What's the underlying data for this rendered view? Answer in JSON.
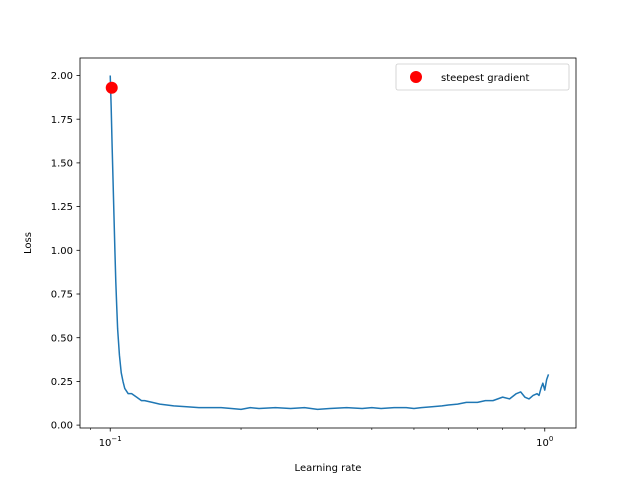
{
  "chart_data": {
    "type": "line",
    "xlabel": "Learning rate",
    "ylabel": "Loss",
    "xscale": "log",
    "xlim": [
      0.0852,
      1.18
    ],
    "ylim": [
      -0.0165,
      2.1
    ],
    "grid": false,
    "legend_position": "top-right",
    "x_tick_labels": [
      {
        "value": 0.1,
        "base": "10",
        "exp": "−1"
      },
      {
        "value": 1.0,
        "base": "10",
        "exp": "0"
      }
    ],
    "y_ticks": [
      0.0,
      0.25,
      0.5,
      0.75,
      1.0,
      1.25,
      1.5,
      1.75,
      2.0
    ],
    "y_tick_labels": [
      "0.00",
      "0.25",
      "0.50",
      "0.75",
      "1.00",
      "1.25",
      "1.50",
      "1.75",
      "2.00"
    ],
    "series": [
      {
        "color": "#1f77b4",
        "x": [
          0.1,
          0.1005,
          0.101,
          0.1015,
          0.102,
          0.1025,
          0.103,
          0.1035,
          0.104,
          0.105,
          0.106,
          0.107,
          0.108,
          0.11,
          0.112,
          0.115,
          0.118,
          0.12,
          0.125,
          0.13,
          0.135,
          0.14,
          0.15,
          0.16,
          0.17,
          0.18,
          0.19,
          0.2,
          0.21,
          0.22,
          0.24,
          0.26,
          0.28,
          0.3,
          0.32,
          0.35,
          0.38,
          0.4,
          0.42,
          0.45,
          0.48,
          0.5,
          0.52,
          0.55,
          0.58,
          0.6,
          0.63,
          0.66,
          0.7,
          0.73,
          0.76,
          0.8,
          0.83,
          0.86,
          0.88,
          0.9,
          0.92,
          0.94,
          0.96,
          0.97,
          0.98,
          0.99,
          1.0,
          1.01,
          1.02
        ],
        "y": [
          2.0,
          1.82,
          1.6,
          1.4,
          1.2,
          1.0,
          0.82,
          0.68,
          0.55,
          0.4,
          0.3,
          0.25,
          0.21,
          0.18,
          0.18,
          0.16,
          0.14,
          0.14,
          0.13,
          0.12,
          0.115,
          0.11,
          0.105,
          0.1,
          0.1,
          0.1,
          0.095,
          0.09,
          0.1,
          0.095,
          0.1,
          0.095,
          0.1,
          0.09,
          0.095,
          0.1,
          0.095,
          0.1,
          0.095,
          0.1,
          0.1,
          0.095,
          0.1,
          0.105,
          0.11,
          0.115,
          0.12,
          0.13,
          0.13,
          0.14,
          0.14,
          0.16,
          0.15,
          0.18,
          0.19,
          0.16,
          0.15,
          0.17,
          0.18,
          0.17,
          0.21,
          0.24,
          0.2,
          0.26,
          0.29
        ]
      }
    ],
    "annotations": [
      {
        "label": "steepest gradient",
        "x": 0.1008,
        "y": 1.93,
        "color": "#ff0000",
        "marker": "circle"
      }
    ]
  }
}
